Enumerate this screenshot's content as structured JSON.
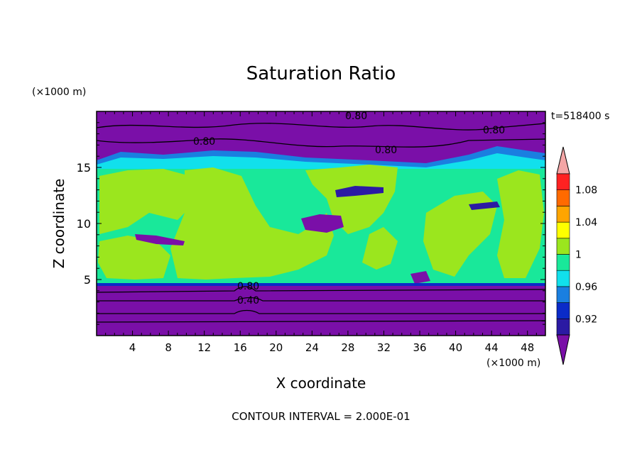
{
  "chart_data": {
    "type": "heatmap",
    "title": "Saturation Ratio",
    "xlabel": "X coordinate",
    "ylabel": "Z coordinate",
    "x_unit": "(×1000 m)",
    "y_unit": "(×1000 m)",
    "time_label": "t=518400 s",
    "footer": "CONTOUR INTERVAL = 2.000E-01",
    "xlim": [
      0,
      50
    ],
    "ylim": [
      0,
      20
    ],
    "x_ticks": [
      "4",
      "8",
      "12",
      "16",
      "20",
      "24",
      "28",
      "32",
      "36",
      "40",
      "44",
      "48"
    ],
    "y_ticks": [
      "5",
      "10",
      "15"
    ],
    "colorbar": {
      "labels": [
        "0.92",
        "0.96",
        "1",
        "1.04",
        "1.08"
      ],
      "levels": [
        0.9,
        0.92,
        0.94,
        0.96,
        0.98,
        1.0,
        1.02,
        1.04,
        1.06,
        1.08,
        1.1
      ],
      "colors": {
        "below": "#7a0fa8",
        "bands": [
          "#2b1aa3",
          "#0b2bc8",
          "#1a7fe0",
          "#11e0ec",
          "#19e89a",
          "#9be61e",
          "#ffff00",
          "#ffa500",
          "#ff6a00",
          "#ff2222"
        ],
        "above": "#f4a6a6"
      }
    },
    "contour_labels": [
      "0.80",
      "0.80",
      "0.80",
      "0.80",
      "0.80",
      "0.40"
    ],
    "regions": {
      "lower_dry_layer_top_km": 4.6,
      "upper_dry_layer_base_km": 14.8,
      "saturated_band": [
        4.6,
        15.5
      ],
      "dominant_values": {
        "lower_layer": 0.8,
        "mid_layer": 1.0,
        "upper_layer": 0.8
      }
    }
  }
}
